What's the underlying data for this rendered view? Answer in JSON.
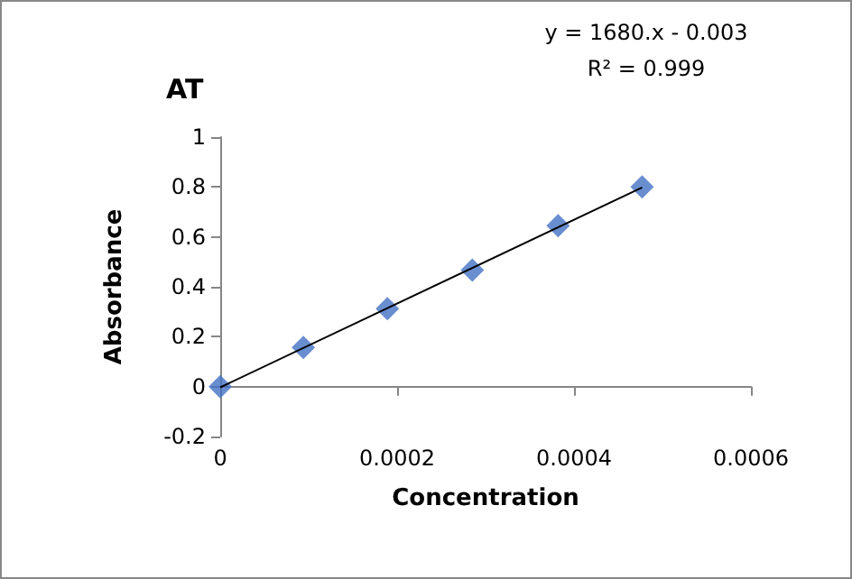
{
  "chart_data": {
    "type": "scatter",
    "title": "AT",
    "xlabel": "Concentration",
    "ylabel": "Absorbance",
    "annotations": [
      "y = 1680.x - 0.003",
      "R² = 0.999"
    ],
    "x": [
      0,
      9.4e-05,
      0.000189,
      0.000285,
      0.000382,
      0.000477
    ],
    "series": [
      {
        "name": null,
        "color": "#4472c4",
        "values": [
          0,
          0.157,
          0.312,
          0.467,
          0.645,
          0.8
        ]
      },
      {
        "type": "line",
        "color": "#000000",
        "x": [
          0,
          0.000477
        ],
        "values": [
          -0.003,
          0.798
        ],
        "marker": "none"
      }
    ],
    "xlim": [
      0,
      0.0006
    ],
    "xticks": [
      0,
      0.0002,
      0.0004,
      0.0006
    ],
    "ylim": [
      -0.2,
      1
    ],
    "yticks": [
      -0.2,
      0,
      0.2,
      0.4,
      0.6,
      0.8,
      1
    ],
    "marker": "diamond"
  }
}
